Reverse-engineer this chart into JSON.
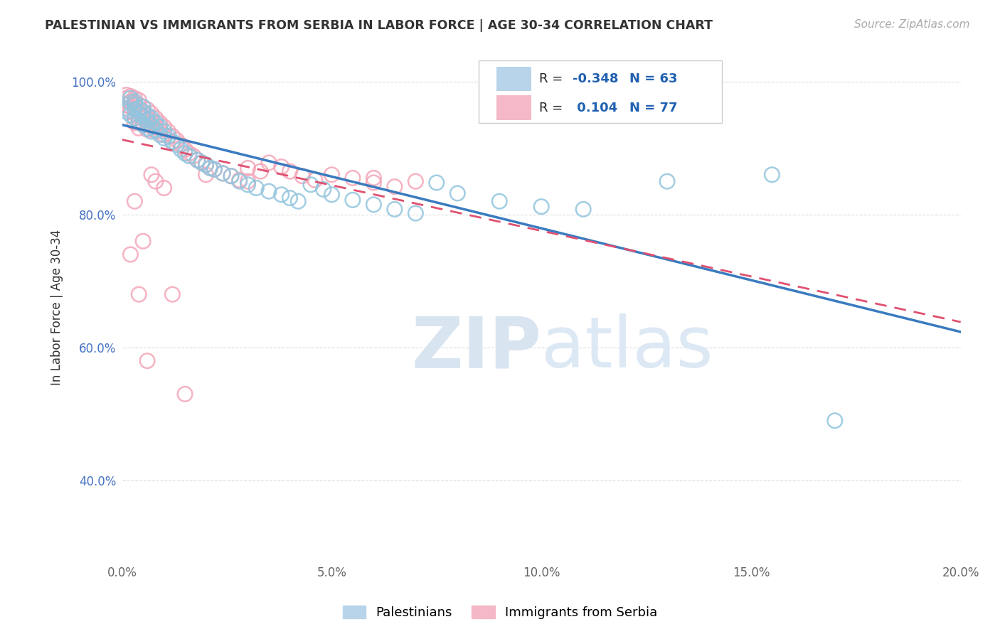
{
  "title": "PALESTINIAN VS IMMIGRANTS FROM SERBIA IN LABOR FORCE | AGE 30-34 CORRELATION CHART",
  "source": "Source: ZipAtlas.com",
  "ylabel": "In Labor Force | Age 30-34",
  "xlim": [
    0.0,
    0.2
  ],
  "ylim": [
    0.28,
    1.04
  ],
  "x_ticks": [
    0.0,
    0.05,
    0.1,
    0.15,
    0.2
  ],
  "x_tick_labels": [
    "0.0%",
    "5.0%",
    "10.0%",
    "15.0%",
    "20.0%"
  ],
  "y_ticks": [
    0.4,
    0.6,
    0.8,
    1.0
  ],
  "y_tick_labels": [
    "40.0%",
    "60.0%",
    "80.0%",
    "100.0%"
  ],
  "blue_R": -0.348,
  "blue_N": 63,
  "pink_R": 0.104,
  "pink_N": 77,
  "blue_color": "#92c5de",
  "pink_color": "#f4a6b8",
  "blue_line_color": "#3a7bbf",
  "pink_line_color": "#e05070",
  "legend_blue_label": "Palestinians",
  "legend_pink_label": "Immigrants from Serbia",
  "blue_x": [
    0.001,
    0.001,
    0.002,
    0.002,
    0.002,
    0.003,
    0.003,
    0.003,
    0.003,
    0.004,
    0.004,
    0.004,
    0.005,
    0.005,
    0.005,
    0.005,
    0.006,
    0.006,
    0.006,
    0.007,
    0.007,
    0.007,
    0.008,
    0.008,
    0.009,
    0.009,
    0.01,
    0.01,
    0.011,
    0.012,
    0.013,
    0.014,
    0.015,
    0.016,
    0.018,
    0.019,
    0.02,
    0.021,
    0.022,
    0.024,
    0.026,
    0.028,
    0.03,
    0.032,
    0.035,
    0.038,
    0.04,
    0.042,
    0.045,
    0.048,
    0.05,
    0.055,
    0.06,
    0.065,
    0.07,
    0.075,
    0.08,
    0.09,
    0.1,
    0.11,
    0.13,
    0.155,
    0.17
  ],
  "blue_y": [
    0.96,
    0.955,
    0.975,
    0.968,
    0.95,
    0.965,
    0.97,
    0.958,
    0.945,
    0.96,
    0.952,
    0.94,
    0.955,
    0.962,
    0.948,
    0.935,
    0.95,
    0.942,
    0.93,
    0.945,
    0.935,
    0.925,
    0.938,
    0.928,
    0.932,
    0.92,
    0.925,
    0.915,
    0.918,
    0.91,
    0.905,
    0.898,
    0.892,
    0.888,
    0.882,
    0.878,
    0.875,
    0.87,
    0.868,
    0.862,
    0.858,
    0.85,
    0.845,
    0.84,
    0.835,
    0.83,
    0.825,
    0.82,
    0.845,
    0.838,
    0.83,
    0.822,
    0.815,
    0.808,
    0.802,
    0.848,
    0.832,
    0.82,
    0.812,
    0.808,
    0.85,
    0.86,
    0.49
  ],
  "pink_x": [
    0.001,
    0.001,
    0.001,
    0.002,
    0.002,
    0.002,
    0.002,
    0.003,
    0.003,
    0.003,
    0.003,
    0.003,
    0.003,
    0.004,
    0.004,
    0.004,
    0.004,
    0.004,
    0.005,
    0.005,
    0.005,
    0.005,
    0.006,
    0.006,
    0.006,
    0.006,
    0.007,
    0.007,
    0.007,
    0.008,
    0.008,
    0.008,
    0.009,
    0.009,
    0.01,
    0.01,
    0.011,
    0.012,
    0.012,
    0.013,
    0.014,
    0.015,
    0.016,
    0.017,
    0.018,
    0.019,
    0.02,
    0.021,
    0.022,
    0.024,
    0.026,
    0.028,
    0.03,
    0.033,
    0.035,
    0.038,
    0.04,
    0.043,
    0.046,
    0.05,
    0.055,
    0.06,
    0.065,
    0.07,
    0.002,
    0.003,
    0.004,
    0.005,
    0.006,
    0.007,
    0.008,
    0.01,
    0.012,
    0.015,
    0.02,
    0.03,
    0.06
  ],
  "pink_y": [
    0.98,
    0.975,
    0.965,
    0.978,
    0.97,
    0.962,
    0.955,
    0.975,
    0.968,
    0.96,
    0.952,
    0.945,
    0.938,
    0.972,
    0.965,
    0.955,
    0.942,
    0.93,
    0.962,
    0.955,
    0.945,
    0.935,
    0.958,
    0.948,
    0.938,
    0.928,
    0.952,
    0.942,
    0.932,
    0.945,
    0.935,
    0.925,
    0.938,
    0.928,
    0.932,
    0.92,
    0.925,
    0.918,
    0.908,
    0.912,
    0.905,
    0.898,
    0.892,
    0.888,
    0.882,
    0.878,
    0.875,
    0.87,
    0.868,
    0.862,
    0.858,
    0.852,
    0.87,
    0.865,
    0.878,
    0.872,
    0.865,
    0.858,
    0.852,
    0.86,
    0.855,
    0.848,
    0.842,
    0.85,
    0.74,
    0.82,
    0.68,
    0.76,
    0.58,
    0.86,
    0.85,
    0.84,
    0.68,
    0.53,
    0.86,
    0.85,
    0.855
  ],
  "watermark_zip": "ZIP",
  "watermark_atlas": "atlas",
  "background_color": "#ffffff",
  "grid_color": "#dddddd",
  "ytick_color": "#4472c4",
  "xtick_color": "#666666"
}
